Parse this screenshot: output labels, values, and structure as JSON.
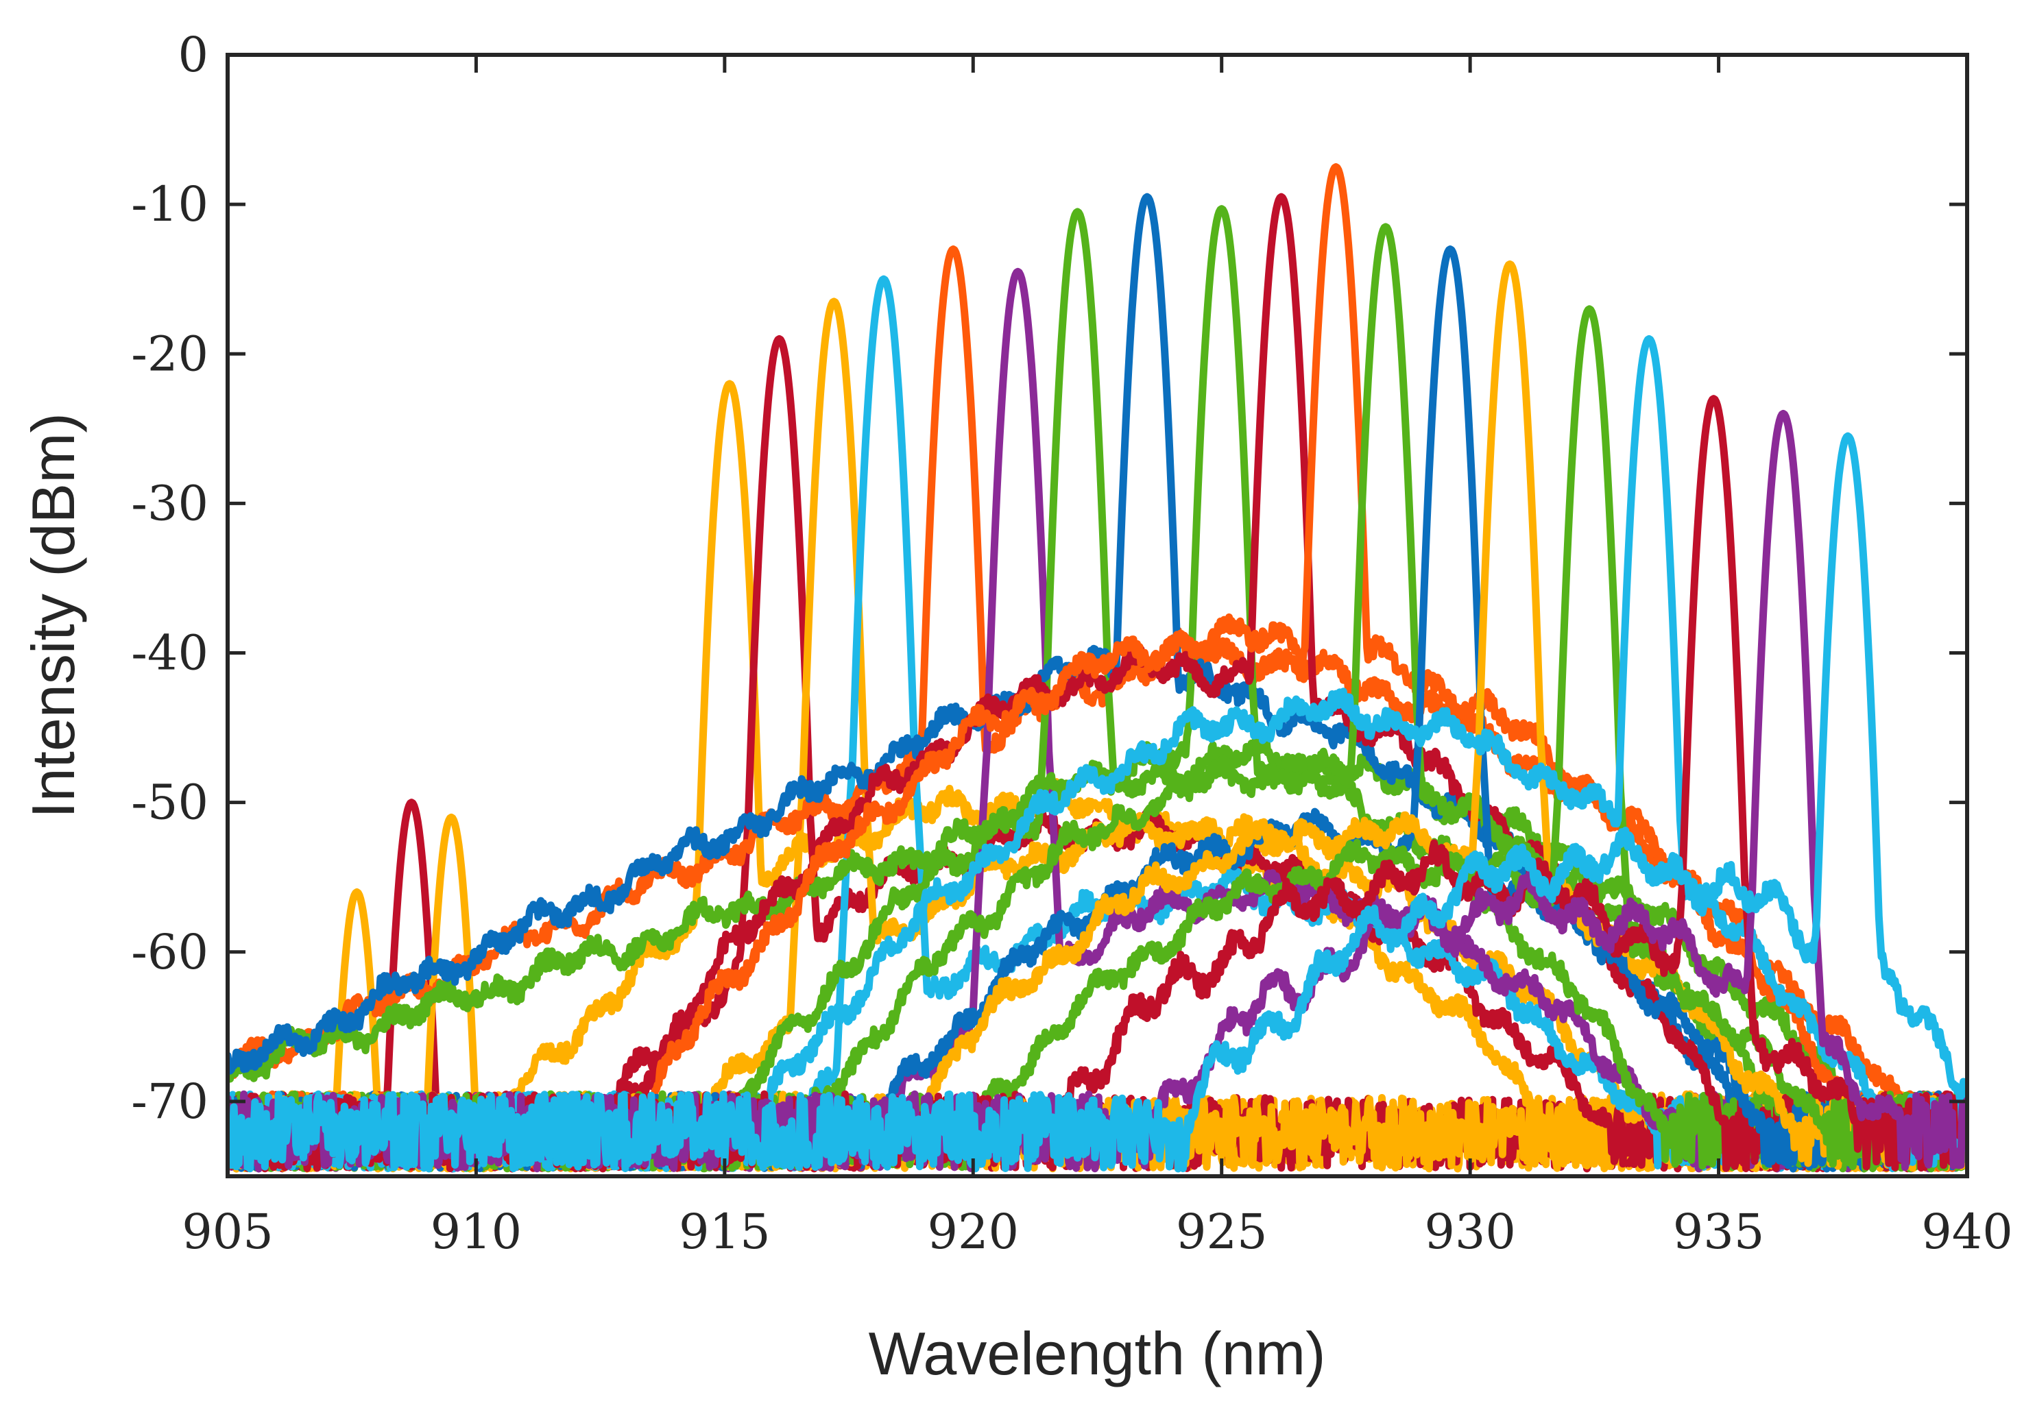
{
  "chart_data": {
    "type": "line",
    "title": "",
    "xlabel": "Wavelength (nm)",
    "ylabel": "Intensity (dBm)",
    "xlim": [
      905,
      940
    ],
    "ylim": [
      -75,
      0
    ],
    "xticks": [
      905,
      910,
      915,
      920,
      925,
      930,
      935,
      940
    ],
    "yticks": [
      0,
      -10,
      -20,
      -30,
      -40,
      -50,
      -60,
      -70
    ],
    "xtick_labels": [
      "905",
      "910",
      "915",
      "920",
      "925",
      "930",
      "935",
      "940"
    ],
    "ytick_labels": [
      "0",
      "-10",
      "-20",
      "-30",
      "-40",
      "-50",
      "-60",
      "-70"
    ],
    "grid": false,
    "legend": "none",
    "series": [
      {
        "name": "yellow-907.6",
        "color": "#FFB000",
        "peak": 907.6,
        "peak_db": -56,
        "bg": "noisefloor",
        "center": 0,
        "bg_peak": -75,
        "width": 0
      },
      {
        "name": "red-908.7",
        "color": "#C0102A",
        "peak": 908.7,
        "peak_db": -50,
        "bg": "noisefloor",
        "center": 0,
        "bg_peak": -75,
        "width": 0
      },
      {
        "name": "yellow-909.5",
        "color": "#FFB000",
        "peak": 909.5,
        "peak_db": -51,
        "bg": "noisefloor",
        "center": 0,
        "bg_peak": -75,
        "width": 0
      },
      {
        "name": "yellow-915.1",
        "color": "#FFB000",
        "peak": 915.1,
        "peak_db": -22,
        "bg": "broad",
        "center": 921,
        "bg_peak": -50,
        "width": 8.5
      },
      {
        "name": "red-916.1",
        "color": "#C0102A",
        "peak": 916.1,
        "peak_db": -19,
        "bg": "broad",
        "center": 922.5,
        "bg_peak": -52,
        "width": 8.5
      },
      {
        "name": "yellow-917.2",
        "color": "#FFB000",
        "peak": 917.2,
        "peak_db": -16.5,
        "bg": "broad",
        "center": 924,
        "bg_peak": -52,
        "width": 8
      },
      {
        "name": "cyan-918.2",
        "color": "#1EB8E8",
        "peak": 918.2,
        "peak_db": -15,
        "bg": "broad",
        "center": 925,
        "bg_peak": -56,
        "width": 8
      },
      {
        "name": "orange-919.6",
        "color": "#FF5A0A",
        "peak": 919.6,
        "peak_db": -13,
        "bg": "ramp",
        "center": 924,
        "bg_peak": -40,
        "width": 16
      },
      {
        "name": "purple-920.9",
        "color": "#8B2A97",
        "peak": 920.9,
        "peak_db": -14.5,
        "bg": "broad",
        "center": 926,
        "bg_peak": -56,
        "width": 7.5
      },
      {
        "name": "green-922.1",
        "color": "#55B31A",
        "peak": 922.1,
        "peak_db": -10.5,
        "bg": "ramp",
        "center": 925,
        "bg_peak": -47,
        "width": 16
      },
      {
        "name": "blue-923.5",
        "color": "#0B6FBE",
        "peak": 923.5,
        "peak_db": -9.5,
        "bg": "ramp",
        "center": 922,
        "bg_peak": -41,
        "width": 15
      },
      {
        "name": "green-925.0",
        "color": "#55B31A",
        "peak": 925.0,
        "peak_db": -10.3,
        "bg": "broad",
        "center": 924.5,
        "bg_peak": -47,
        "width": 7
      },
      {
        "name": "red-926.2",
        "color": "#C0102A",
        "peak": 926.2,
        "peak_db": -9.5,
        "bg": "broad",
        "center": 924,
        "bg_peak": -41,
        "width": 7.5
      },
      {
        "name": "orange-927.3",
        "color": "#FF5A0A",
        "peak": 927.3,
        "peak_db": -7.5,
        "bg": "broad",
        "center": 925.5,
        "bg_peak": -39,
        "width": 8
      },
      {
        "name": "green-928.3",
        "color": "#55B31A",
        "peak": 928.3,
        "peak_db": -11.5,
        "bg": "broad",
        "center": 926.5,
        "bg_peak": -48,
        "width": 7.5
      },
      {
        "name": "blue-929.6",
        "color": "#0B6FBE",
        "peak": 929.6,
        "peak_db": -13,
        "bg": "broad",
        "center": 927,
        "bg_peak": -52,
        "width": 7.5
      },
      {
        "name": "yellow-930.8",
        "color": "#FFB000",
        "peak": 930.8,
        "peak_db": -14,
        "bg": "broad",
        "center": 927.5,
        "bg_peak": -52,
        "width": 7.5
      },
      {
        "name": "green-932.4",
        "color": "#55B31A",
        "peak": 932.4,
        "peak_db": -17,
        "bg": "broad",
        "center": 928.5,
        "bg_peak": -54,
        "width": 7.5
      },
      {
        "name": "cyan-933.6",
        "color": "#1EB8E8",
        "peak": 933.6,
        "peak_db": -19,
        "bg": "broad",
        "center": 927,
        "bg_peak": -44,
        "width": 8
      },
      {
        "name": "red-934.9",
        "color": "#C0102A",
        "peak": 934.9,
        "peak_db": -23,
        "bg": "lowhump",
        "center": 929.5,
        "bg_peak": -55,
        "width": 6
      },
      {
        "name": "purple-936.3",
        "color": "#8B2A97",
        "peak": 936.3,
        "peak_db": -24,
        "bg": "lowhump",
        "center": 931,
        "bg_peak": -57,
        "width": 6
      },
      {
        "name": "cyan-937.6",
        "color": "#1EB8E8",
        "peak": 937.6,
        "peak_db": -25.5,
        "bg": "lowhump",
        "center": 932.5,
        "bg_peak": -54,
        "width": 6
      }
    ]
  }
}
